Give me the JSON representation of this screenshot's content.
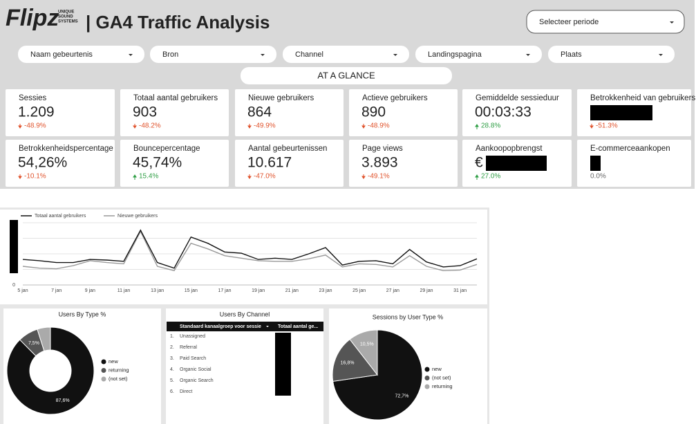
{
  "header": {
    "logo": "Flipz",
    "logo_tag": [
      "UNIQUE",
      "SOUND",
      "SYSTEMS"
    ],
    "title": "| GA4 Traffic Analysis",
    "period": "Selecteer periode"
  },
  "filters": [
    "Naam gebeurtenis",
    "Bron",
    "Channel",
    "Landingspagina",
    "Plaats"
  ],
  "section": "AT A GLANCE",
  "kpis": [
    {
      "label": "Sessies",
      "value": "1.209",
      "change": "-48.9%",
      "direction": "down"
    },
    {
      "label": "Totaal aantal gebruikers",
      "value": "903",
      "change": "-48.2%",
      "direction": "down"
    },
    {
      "label": "Nieuwe gebruikers",
      "value": "864",
      "change": "-49.9%",
      "direction": "down"
    },
    {
      "label": "Actieve gebruikers",
      "value": "890",
      "change": "-48.9%",
      "direction": "down"
    },
    {
      "label": "Gemiddelde sessieduur",
      "value": "00:03:33",
      "change": "28.8%",
      "direction": "up"
    },
    {
      "label": "Betrokkenheid van gebruikers",
      "redacted": true,
      "change": "-51.3%",
      "direction": "down"
    },
    {
      "label": "Betrokkenheidspercentage",
      "value": "54,26%",
      "change": "-10.1%",
      "direction": "down"
    },
    {
      "label": "Bouncepercentage",
      "value": "45,74%",
      "change": "15.4%",
      "direction": "up"
    },
    {
      "label": "Aantal gebeurtenissen",
      "value": "10.617",
      "change": "-47.0%",
      "direction": "down"
    },
    {
      "label": "Page views",
      "value": "3.893",
      "change": "-49.1%",
      "direction": "down"
    },
    {
      "label": "Aankoopopbrengst",
      "value": "€",
      "redacted": true,
      "change": "27.0%",
      "direction": "up"
    },
    {
      "label": "E-commerceaankopen",
      "redacted": true,
      "change": "0.0%",
      "direction": "flat"
    }
  ],
  "chart_data": [
    {
      "type": "line",
      "categories": [
        "5 jan",
        null,
        "7 jan",
        null,
        "9 jan",
        null,
        "11 jan",
        null,
        "13 jan",
        null,
        "15 jan",
        null,
        "17 jan",
        null,
        "19 jan",
        null,
        "21 jan",
        null,
        "23 jan",
        null,
        "25 jan",
        null,
        "27 jan",
        null,
        "29 jan",
        null,
        "31 jan",
        null
      ],
      "series": [
        {
          "name": "Totaal aantal gebruikers",
          "color": "#111111",
          "values": [
            41,
            39,
            36,
            36,
            41,
            40,
            38,
            88,
            36,
            27,
            77,
            67,
            53,
            51,
            41,
            43,
            41,
            50,
            60,
            32,
            38,
            39,
            34,
            57,
            37,
            29,
            31,
            42
          ]
        },
        {
          "name": "Nieuwe gebruikers",
          "color": "#999999",
          "values": [
            30,
            27,
            26,
            31,
            39,
            36,
            34,
            86,
            30,
            23,
            67,
            58,
            47,
            43,
            39,
            38,
            38,
            42,
            48,
            29,
            34,
            33,
            29,
            47,
            30,
            23,
            24,
            33
          ]
        }
      ],
      "ylim": [
        0,
        100
      ],
      "yticks": [
        0
      ],
      "grid": true,
      "legend": "top"
    },
    {
      "type": "donut",
      "title": "Users By Type %",
      "categories": [
        "new",
        "returning",
        "(not set)"
      ],
      "values": [
        87.6,
        7.5,
        4.9
      ],
      "value_labels": [
        "87,6%",
        "7,5%",
        null
      ],
      "colors": [
        "#111111",
        "#555555",
        "#aaaaaa"
      ],
      "legend": "right"
    },
    {
      "type": "pie",
      "title": "Sessions by User Type %",
      "categories": [
        "new",
        "(not set)",
        "returning"
      ],
      "values": [
        72.7,
        16.8,
        10.5
      ],
      "value_labels": [
        "72,7%",
        "16,8%",
        "10,5%"
      ],
      "colors": [
        "#111111",
        "#555555",
        "#aaaaaa"
      ],
      "legend": "right"
    }
  ],
  "table": {
    "title": "Users By Channel",
    "columns": [
      "Standaard kanaalgroep voor sessie",
      "Totaal aantal ge..."
    ],
    "rows": [
      [
        "1.",
        "Unassigned"
      ],
      [
        "2.",
        "Referral"
      ],
      [
        "3.",
        "Paid Search"
      ],
      [
        "4.",
        "Organic Social"
      ],
      [
        "5.",
        "Organic Search"
      ],
      [
        "6.",
        "Direct"
      ]
    ]
  }
}
